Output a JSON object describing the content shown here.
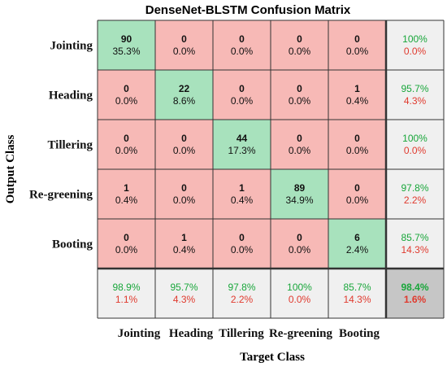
{
  "chart_data": {
    "type": "heatmap",
    "title": "DenseNet-BLSTM Confusion Matrix",
    "xlabel": "Target Class",
    "ylabel": "Output Class",
    "row_labels": [
      "Jointing",
      "Heading",
      "Tillering",
      "Re-greening",
      "Booting"
    ],
    "col_labels": [
      "Jointing",
      "Heading",
      "Tillering",
      "Re-greening",
      "Booting"
    ],
    "counts": [
      [
        90,
        0,
        0,
        0,
        0
      ],
      [
        0,
        22,
        0,
        0,
        1
      ],
      [
        0,
        0,
        44,
        0,
        0
      ],
      [
        1,
        0,
        1,
        89,
        0
      ],
      [
        0,
        1,
        0,
        0,
        6
      ]
    ],
    "percents": [
      [
        "35.3%",
        "0.0%",
        "0.0%",
        "0.0%",
        "0.0%"
      ],
      [
        "0.0%",
        "8.6%",
        "0.0%",
        "0.0%",
        "0.4%"
      ],
      [
        "0.0%",
        "0.0%",
        "17.3%",
        "0.0%",
        "0.0%"
      ],
      [
        "0.4%",
        "0.0%",
        "0.4%",
        "34.9%",
        "0.0%"
      ],
      [
        "0.0%",
        "0.4%",
        "0.0%",
        "0.0%",
        "2.4%"
      ]
    ],
    "row_summary": [
      {
        "correct": "100%",
        "error": "0.0%"
      },
      {
        "correct": "95.7%",
        "error": "4.3%"
      },
      {
        "correct": "100%",
        "error": "0.0%"
      },
      {
        "correct": "97.8%",
        "error": "2.2%"
      },
      {
        "correct": "85.7%",
        "error": "14.3%"
      }
    ],
    "col_summary": [
      {
        "correct": "98.9%",
        "error": "1.1%"
      },
      {
        "correct": "95.7%",
        "error": "4.3%"
      },
      {
        "correct": "97.8%",
        "error": "2.2%"
      },
      {
        "correct": "100%",
        "error": "0.0%"
      },
      {
        "correct": "85.7%",
        "error": "14.3%"
      }
    ],
    "overall": {
      "correct": "98.4%",
      "error": "1.6%"
    },
    "colors": {
      "diagonal": "#a8e2bd",
      "off_diagonal": "#f7b9b6",
      "summary": "#f0f0f0",
      "overall": "#c6c6c6",
      "correct_text": "#18a63a",
      "error_text": "#e03a2e",
      "grid": "#333333"
    }
  }
}
